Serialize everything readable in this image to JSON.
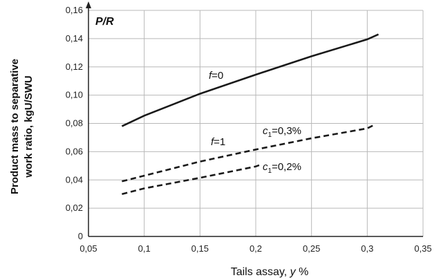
{
  "chart_data": {
    "type": "line",
    "title": "",
    "corner_label": "P/R",
    "xlabel_text": "Tails assay, ",
    "xlabel_var": "y",
    "xlabel_unit": " %",
    "ylabel_line1": "Product mass to separative",
    "ylabel_line2": "work ratio, kgU/SWU",
    "xlim": [
      0.05,
      0.35
    ],
    "ylim": [
      0,
      0.16
    ],
    "x_ticks": [
      0.05,
      0.1,
      0.15,
      0.2,
      0.25,
      0.3,
      0.35
    ],
    "x_tick_labels": [
      "0,05",
      "0,1",
      "0,15",
      "0,2",
      "0,25",
      "0,3",
      "0,35"
    ],
    "y_ticks": [
      0,
      0.02,
      0.04,
      0.06,
      0.08,
      0.1,
      0.12,
      0.14,
      0.16
    ],
    "y_tick_labels": [
      "0",
      "0,02",
      "0,04",
      "0,06",
      "0,08",
      "0,10",
      "0,12",
      "0,14",
      "0,16"
    ],
    "grid": true,
    "series": [
      {
        "style": "solid",
        "x": [
          0.08,
          0.1,
          0.15,
          0.2,
          0.25,
          0.3,
          0.31
        ],
        "y": [
          0.078,
          0.0855,
          0.101,
          0.1145,
          0.1275,
          0.1395,
          0.143
        ]
      },
      {
        "style": "dashed",
        "x": [
          0.08,
          0.1,
          0.15,
          0.2,
          0.25,
          0.3,
          0.305
        ],
        "y": [
          0.039,
          0.043,
          0.053,
          0.0615,
          0.0695,
          0.0765,
          0.0785
        ]
      },
      {
        "style": "dashed",
        "x": [
          0.08,
          0.1,
          0.15,
          0.2,
          0.205
        ],
        "y": [
          0.03,
          0.034,
          0.0415,
          0.0495,
          0.051
        ]
      }
    ],
    "annotations": {
      "f0": {
        "var": "f",
        "text": "=0"
      },
      "f1": {
        "var": "f",
        "text": "=1"
      },
      "c03": {
        "var": "c",
        "sub": "1",
        "text": "=0,3%"
      },
      "c02": {
        "var": "c",
        "sub": "1",
        "text": "=0,2%"
      }
    }
  }
}
